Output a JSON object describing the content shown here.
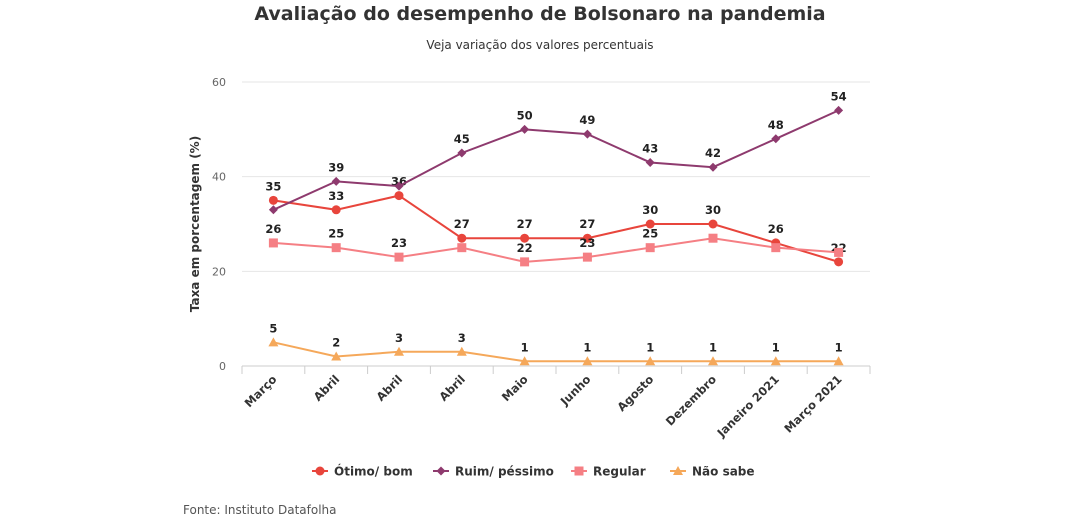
{
  "chart_data": {
    "type": "line",
    "title": "Avaliação do desempenho de Bolsonaro na pandemia",
    "subtitle": "Veja variação dos valores percentuais",
    "ylabel": "Taxa em porcentagem (%)",
    "xlabel": "",
    "ylim": [
      0,
      60
    ],
    "yticks": [
      0,
      20,
      40,
      60
    ],
    "grid": true,
    "legend": "bottom",
    "categories": [
      "Março",
      "Abril",
      "Abril",
      "Abril",
      "Maio",
      "Junho",
      "Agosto",
      "Dezembro",
      "Janeiro 2021",
      "Março 2021"
    ],
    "series": [
      {
        "name": "Ótimo/ bom",
        "color": "#e8453c",
        "marker": "circle",
        "values": [
          35,
          33,
          36,
          27,
          27,
          27,
          30,
          30,
          26,
          22
        ],
        "labels_shown": [
          true,
          true,
          true,
          true,
          true,
          true,
          true,
          true,
          true,
          true
        ]
      },
      {
        "name": "Ruim/ péssimo",
        "color": "#8e3a6e",
        "marker": "diamond",
        "values": [
          33,
          39,
          38,
          45,
          50,
          49,
          43,
          42,
          48,
          54
        ],
        "labels_shown": [
          false,
          true,
          false,
          true,
          true,
          true,
          true,
          true,
          true,
          true
        ]
      },
      {
        "name": "Regular",
        "color": "#f57f84",
        "marker": "square",
        "values": [
          26,
          25,
          23,
          25,
          22,
          23,
          25,
          27,
          25,
          24
        ],
        "labels_shown": [
          true,
          true,
          true,
          false,
          true,
          true,
          true,
          false,
          false,
          false
        ]
      },
      {
        "name": "Não sabe",
        "color": "#f5a85a",
        "marker": "triangle",
        "values": [
          5,
          2,
          3,
          3,
          1,
          1,
          1,
          1,
          1,
          1
        ],
        "labels_shown": [
          true,
          true,
          true,
          true,
          true,
          true,
          true,
          true,
          true,
          true
        ]
      }
    ]
  },
  "source": "Fonte: Instituto Datafolha"
}
